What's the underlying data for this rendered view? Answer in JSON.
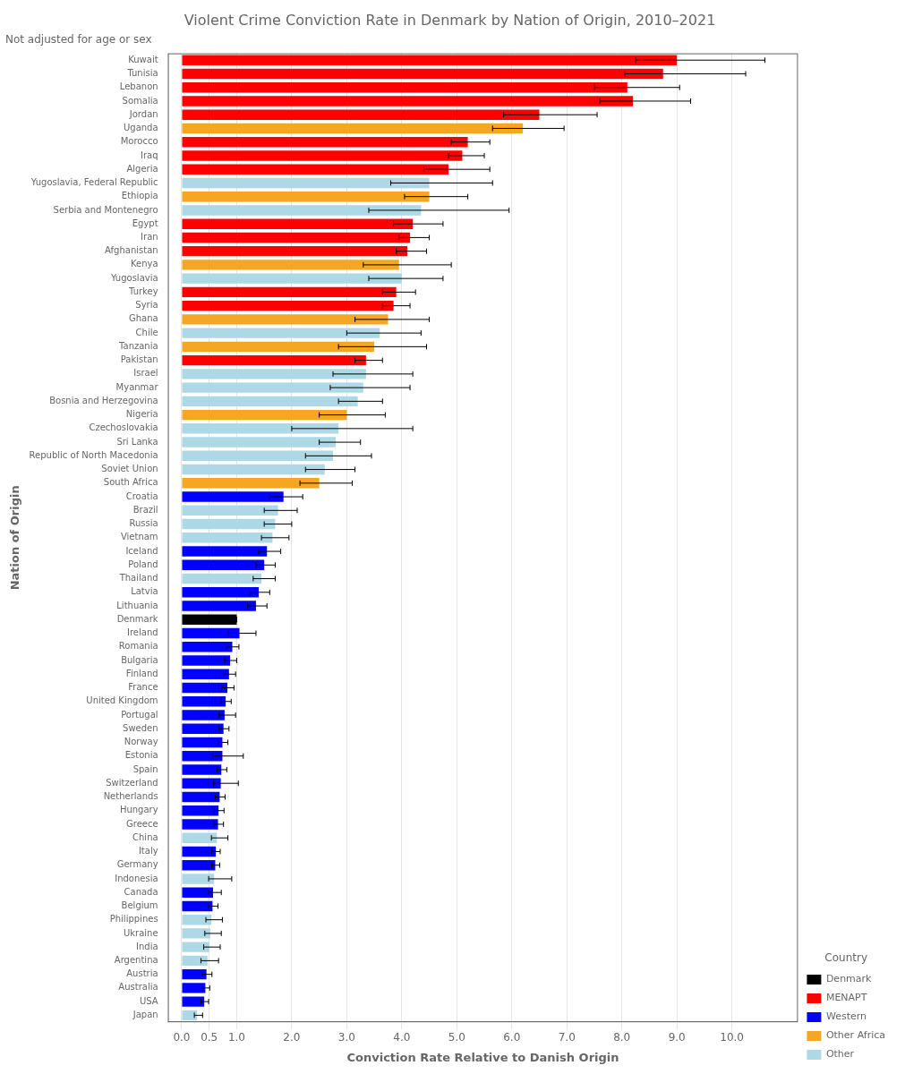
{
  "chart_data": {
    "type": "bar",
    "orientation": "horizontal",
    "title": "Violent Crime Conviction Rate in Denmark by Nation of Origin, 2010–2021",
    "subtitle": "Not adjusted for age or sex",
    "xlabel": "Conviction Rate Relative to Danish Origin",
    "ylabel": "Nation of Origin",
    "categories": [
      "Kuwait",
      "Tunisia",
      "Lebanon",
      "Somalia",
      "Jordan",
      "Uganda",
      "Morocco",
      "Iraq",
      "Algeria",
      "Yugoslavia, Federal Republic",
      "Ethiopia",
      "Serbia and Montenegro",
      "Egypt",
      "Iran",
      "Afghanistan",
      "Kenya",
      "Yugoslavia",
      "Turkey",
      "Syria",
      "Ghana",
      "Chile",
      "Tanzania",
      "Pakistan",
      "Israel",
      "Myanmar",
      "Bosnia and Herzegovina",
      "Nigeria",
      "Czechoslovakia",
      "Sri Lanka",
      "Republic of North Macedonia",
      "Soviet Union",
      "South Africa",
      "Croatia",
      "Brazil",
      "Russia",
      "Vietnam",
      "Iceland",
      "Poland",
      "Thailand",
      "Latvia",
      "Lithuania",
      "Denmark",
      "Ireland",
      "Romania",
      "Bulgaria",
      "Finland",
      "France",
      "United Kingdom",
      "Portugal",
      "Sweden",
      "Norway",
      "Estonia",
      "Spain",
      "Switzerland",
      "Netherlands",
      "Hungary",
      "Greece",
      "China",
      "Italy",
      "Germany",
      "Indonesia",
      "Canada",
      "Belgium",
      "Philippines",
      "Ukraine",
      "India",
      "Argentina",
      "Austria",
      "Australia",
      "USA",
      "Japan"
    ],
    "values": [
      9.0,
      8.75,
      8.1,
      8.2,
      6.5,
      6.2,
      5.2,
      5.1,
      4.85,
      4.5,
      4.5,
      4.35,
      4.2,
      4.15,
      4.1,
      3.95,
      4.0,
      3.9,
      3.85,
      3.75,
      3.6,
      3.5,
      3.35,
      3.35,
      3.3,
      3.2,
      3.0,
      2.85,
      2.8,
      2.75,
      2.6,
      2.5,
      1.85,
      1.75,
      1.7,
      1.65,
      1.55,
      1.5,
      1.45,
      1.4,
      1.35,
      1.0,
      1.05,
      0.92,
      0.88,
      0.86,
      0.83,
      0.8,
      0.78,
      0.76,
      0.74,
      0.74,
      0.72,
      0.71,
      0.69,
      0.67,
      0.66,
      0.64,
      0.62,
      0.61,
      0.59,
      0.57,
      0.56,
      0.54,
      0.52,
      0.5,
      0.47,
      0.45,
      0.43,
      0.41,
      0.28
    ],
    "errors_low": [
      0.75,
      0.7,
      0.6,
      0.6,
      0.65,
      0.55,
      0.3,
      0.25,
      0.45,
      0.7,
      0.45,
      0.95,
      0.35,
      0.2,
      0.2,
      0.65,
      0.6,
      0.25,
      0.2,
      0.6,
      0.6,
      0.65,
      0.2,
      0.6,
      0.6,
      0.35,
      0.5,
      0.85,
      0.3,
      0.5,
      0.35,
      0.35,
      0.25,
      0.25,
      0.2,
      0.2,
      0.15,
      0.15,
      0.15,
      0.15,
      0.15,
      0.0,
      0.2,
      0.1,
      0.1,
      0.1,
      0.1,
      0.08,
      0.1,
      0.08,
      0.08,
      0.18,
      0.08,
      0.13,
      0.08,
      0.08,
      0.07,
      0.1,
      0.07,
      0.06,
      0.1,
      0.08,
      0.07,
      0.1,
      0.1,
      0.1,
      0.12,
      0.08,
      0.06,
      0.06,
      0.05
    ],
    "errors_high": [
      1.6,
      1.5,
      0.95,
      1.05,
      1.05,
      0.75,
      0.4,
      0.4,
      0.75,
      1.15,
      0.7,
      1.6,
      0.55,
      0.35,
      0.35,
      0.95,
      0.75,
      0.35,
      0.3,
      0.75,
      0.75,
      0.95,
      0.3,
      0.85,
      0.85,
      0.45,
      0.7,
      1.35,
      0.45,
      0.7,
      0.55,
      0.6,
      0.35,
      0.35,
      0.3,
      0.3,
      0.25,
      0.2,
      0.25,
      0.2,
      0.2,
      0.0,
      0.3,
      0.12,
      0.12,
      0.12,
      0.12,
      0.1,
      0.2,
      0.1,
      0.1,
      0.38,
      0.1,
      0.32,
      0.1,
      0.1,
      0.1,
      0.2,
      0.08,
      0.08,
      0.32,
      0.15,
      0.1,
      0.2,
      0.2,
      0.2,
      0.2,
      0.1,
      0.08,
      0.08,
      0.1
    ],
    "colors": [
      "#FF0000",
      "#FF0000",
      "#FF0000",
      "#FF0000",
      "#FF0000",
      "#F5A623",
      "#FF0000",
      "#FF0000",
      "#FF0000",
      "#ADD8E6",
      "#F5A623",
      "#ADD8E6",
      "#FF0000",
      "#FF0000",
      "#FF0000",
      "#F5A623",
      "#ADD8E6",
      "#FF0000",
      "#FF0000",
      "#F5A623",
      "#ADD8E6",
      "#F5A623",
      "#FF0000",
      "#ADD8E6",
      "#ADD8E6",
      "#ADD8E6",
      "#F5A623",
      "#ADD8E6",
      "#ADD8E6",
      "#ADD8E6",
      "#ADD8E6",
      "#F5A623",
      "#0000FF",
      "#ADD8E6",
      "#ADD8E6",
      "#ADD8E6",
      "#0000FF",
      "#0000FF",
      "#ADD8E6",
      "#0000FF",
      "#0000FF",
      "#000000",
      "#0000FF",
      "#0000FF",
      "#0000FF",
      "#0000FF",
      "#0000FF",
      "#0000FF",
      "#0000FF",
      "#0000FF",
      "#0000FF",
      "#0000FF",
      "#0000FF",
      "#0000FF",
      "#0000FF",
      "#0000FF",
      "#0000FF",
      "#ADD8E6",
      "#0000FF",
      "#0000FF",
      "#ADD8E6",
      "#0000FF",
      "#0000FF",
      "#ADD8E6",
      "#ADD8E6",
      "#ADD8E6",
      "#ADD8E6",
      "#0000FF",
      "#0000FF",
      "#0000FF",
      "#ADD8E6"
    ],
    "legend": "lower right",
    "legend_title": "Country",
    "legend_items": [
      {
        "label": "Denmark",
        "color": "#000000"
      },
      {
        "label": "MENAPT",
        "color": "#FF0000"
      },
      {
        "label": "Western",
        "color": "#0000FF"
      },
      {
        "label": "Other Africa",
        "color": "#F5A623"
      },
      {
        "label": "Other",
        "color": "#ADD8E6"
      }
    ],
    "xlim": [
      -0.25,
      11.2
    ],
    "xticks": [
      {
        "value": 0,
        "label": "0.0"
      },
      {
        "value": 0.5,
        "label": "0.5"
      },
      {
        "value": 1,
        "label": "1.0"
      },
      {
        "value": 2,
        "label": "2.0"
      },
      {
        "value": 3,
        "label": "3.0"
      },
      {
        "value": 4,
        "label": "4.0"
      },
      {
        "value": 5,
        "label": "5.0"
      },
      {
        "value": 6,
        "label": "6.0"
      },
      {
        "value": 7,
        "label": "7.0"
      },
      {
        "value": 8,
        "label": "8.0"
      },
      {
        "value": 9,
        "label": "9.0"
      },
      {
        "value": 10,
        "label": "10.0"
      }
    ],
    "grid": true
  }
}
